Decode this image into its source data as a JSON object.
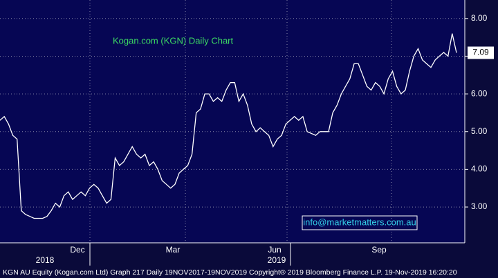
{
  "chart_data": {
    "type": "line",
    "title": "Kogan.com (KGN) Daily Chart",
    "values": [
      5.3,
      5.4,
      5.2,
      4.9,
      4.8,
      2.9,
      2.8,
      2.75,
      2.7,
      2.7,
      2.7,
      2.75,
      2.9,
      3.1,
      3.0,
      3.3,
      3.4,
      3.2,
      3.3,
      3.4,
      3.3,
      3.5,
      3.6,
      3.5,
      3.3,
      3.1,
      3.2,
      4.3,
      4.1,
      4.2,
      4.4,
      4.6,
      4.4,
      4.3,
      4.4,
      4.1,
      4.2,
      4.0,
      3.7,
      3.6,
      3.5,
      3.6,
      3.9,
      4.0,
      4.1,
      4.4,
      5.5,
      5.6,
      6.0,
      6.0,
      5.8,
      5.9,
      5.8,
      6.1,
      6.3,
      6.3,
      5.8,
      6.0,
      5.7,
      5.2,
      5.0,
      5.1,
      5.0,
      4.9,
      4.6,
      4.8,
      4.9,
      5.2,
      5.3,
      5.4,
      5.3,
      5.4,
      5.0,
      4.95,
      4.9,
      5.0,
      5.0,
      5.0,
      5.5,
      5.7,
      6.0,
      6.2,
      6.4,
      6.8,
      6.8,
      6.5,
      6.2,
      6.1,
      6.3,
      6.2,
      6.0,
      6.4,
      6.6,
      6.2,
      6.0,
      6.1,
      6.6,
      7.0,
      7.2,
      6.9,
      6.8,
      6.7,
      6.9,
      7.0,
      7.1,
      7.0,
      7.6,
      7.09
    ],
    "color": "#ffffff",
    "ylim": [
      2.05,
      8.49
    ],
    "yticks": [
      {
        "value": 3,
        "label": "3.00"
      },
      {
        "value": 4,
        "label": "4.00"
      },
      {
        "value": 5,
        "label": "5.00"
      },
      {
        "value": 6,
        "label": "6.00"
      },
      {
        "value": 7,
        "label": "7.00"
      },
      {
        "value": 8,
        "label": "8.00"
      }
    ],
    "grid": true,
    "xticks": [
      "Dec",
      "Mar",
      "Jun",
      "Sep"
    ],
    "years": [
      "2018",
      "2019"
    ],
    "last_price": {
      "value": 7.09,
      "label": "7.09"
    },
    "link": "info@marketmatters.com.au",
    "footer": "KGN AU Equity (Kogan.com Ltd) Graph 217  Daily 19NOV2017-19NOV2019  Copyright® 2019 Bloomberg Finance L.P.   19-Nov-2019 16:20:20"
  }
}
